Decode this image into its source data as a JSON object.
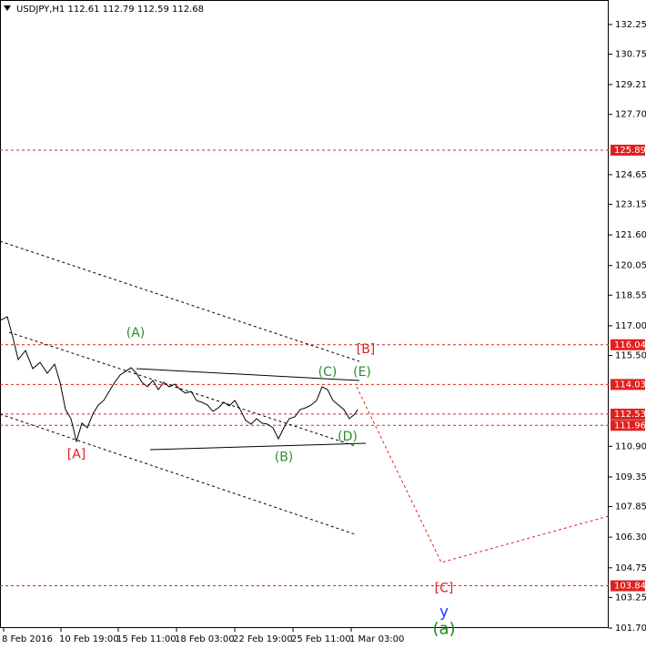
{
  "chart_data": {
    "type": "line",
    "title": "USDJPY,H1  112.61 112.79 112.59 112.68",
    "xlim": [
      0,
      669
    ],
    "ylim": [
      101.7,
      133.49
    ],
    "xticks": [
      {
        "value": 4,
        "label": "8 Feb 2016"
      },
      {
        "value": 67,
        "label": "10 Feb 19:00"
      },
      {
        "value": 130,
        "label": "15 Feb 11:00"
      },
      {
        "value": 194,
        "label": "18 Feb 03:00"
      },
      {
        "value": 258,
        "label": "22 Feb 19:00"
      },
      {
        "value": 322,
        "label": "25 Feb 11:00"
      },
      {
        "value": 386,
        "label": "1 Mar 03:00"
      }
    ],
    "yticks": [
      {
        "value": 132.25,
        "label": "132.25"
      },
      {
        "value": 130.75,
        "label": "130.75"
      },
      {
        "value": 129.21,
        "label": "129.21"
      },
      {
        "value": 127.7,
        "label": "127.70"
      },
      {
        "value": 124.65,
        "label": "124.65"
      },
      {
        "value": 123.15,
        "label": "123.15"
      },
      {
        "value": 121.6,
        "label": "121.60"
      },
      {
        "value": 120.05,
        "label": "120.05"
      },
      {
        "value": 118.55,
        "label": "118.55"
      },
      {
        "value": 117.0,
        "label": "117.00"
      },
      {
        "value": 115.5,
        "label": "115.50"
      },
      {
        "value": 110.9,
        "label": "110.90"
      },
      {
        "value": 109.35,
        "label": "109.35"
      },
      {
        "value": 107.85,
        "label": "107.85"
      },
      {
        "value": 106.3,
        "label": "106.30"
      },
      {
        "value": 104.75,
        "label": "104.75"
      },
      {
        "value": 103.25,
        "label": "103.25"
      },
      {
        "value": 101.7,
        "label": "101.70"
      }
    ],
    "series": [
      {
        "color": "#000000",
        "style": "solid",
        "x": [
          0,
          8,
          14,
          20,
          28,
          36,
          44,
          52,
          60,
          66,
          72,
          78,
          84,
          90,
          96,
          102,
          108,
          114,
          120,
          126,
          132,
          138,
          144,
          150,
          156,
          162,
          168,
          174,
          180,
          186,
          192,
          198,
          204,
          210,
          216,
          222,
          228,
          234,
          240,
          246,
          252,
          258,
          264,
          270,
          276,
          282,
          288,
          294,
          300,
          306,
          312,
          318,
          324,
          330,
          336,
          342,
          348,
          354,
          360,
          366,
          372,
          378,
          384,
          390,
          393
        ],
        "values": [
          117.27,
          117.46,
          116.44,
          115.29,
          115.75,
          114.83,
          115.15,
          114.6,
          115.06,
          114.14,
          112.76,
          112.3,
          111.15,
          112.07,
          111.84,
          112.53,
          112.99,
          113.22,
          113.68,
          114.14,
          114.51,
          114.69,
          114.88,
          114.6,
          114.14,
          113.91,
          114.23,
          113.77,
          114.14,
          113.91,
          114.05,
          113.77,
          113.59,
          113.68,
          113.22,
          113.13,
          112.99,
          112.67,
          112.85,
          113.13,
          112.94,
          113.22,
          112.76,
          112.21,
          112.02,
          112.3,
          112.07,
          112.02,
          111.84,
          111.28,
          111.84,
          112.3,
          112.39,
          112.76,
          112.85,
          112.99,
          113.22,
          113.91,
          113.77,
          113.22,
          112.99,
          112.76,
          112.3,
          112.53,
          112.76
        ]
      },
      {
        "color": "#e02020",
        "style": "dashed",
        "x": [
          392,
          485,
          669
        ],
        "values": [
          113.91,
          105.02,
          107.37
        ]
      }
    ],
    "lines": [
      {
        "color": "#000000",
        "style": "dashed",
        "x": [
          0,
          395
        ],
        "values": [
          121.28,
          115.2
        ]
      },
      {
        "color": "#000000",
        "style": "dashed",
        "x": [
          0,
          390
        ],
        "values": [
          112.53,
          106.45
        ]
      },
      {
        "color": "#000000",
        "style": "dashed",
        "x": [
          10,
          390
        ],
        "values": [
          116.67,
          110.92
        ]
      },
      {
        "color": "#000000",
        "style": "solid",
        "x": [
          150,
          395
        ],
        "values": [
          114.83,
          114.23
        ]
      },
      {
        "color": "#000000",
        "style": "solid",
        "x": [
          165,
          402
        ],
        "values": [
          110.73,
          111.05
        ]
      }
    ],
    "levels": [
      {
        "value": 125.89,
        "color": "#e02020"
      },
      {
        "value": 116.04,
        "color": "#e02020"
      },
      {
        "value": 114.03,
        "color": "#e02020"
      },
      {
        "value": 112.53,
        "color": "#e02020"
      },
      {
        "value": 111.96,
        "color": "#e02020"
      },
      {
        "value": 103.84,
        "color": "#e02020"
      }
    ],
    "annotations": [
      {
        "text": "[A]",
        "x": 84,
        "y": 110.47,
        "color": "#e02020",
        "size": 14
      },
      {
        "text": "(A)",
        "x": 149,
        "y": 116.63,
        "color": "#2e8b2e",
        "size": 14
      },
      {
        "text": "(B)",
        "x": 312,
        "y": 110.33,
        "color": "#2e8b2e",
        "size": 14
      },
      {
        "text": "(C)",
        "x": 360,
        "y": 114.65,
        "color": "#2e8b2e",
        "size": 14
      },
      {
        "text": "(D)",
        "x": 382,
        "y": 111.38,
        "color": "#2e8b2e",
        "size": 14
      },
      {
        "text": "(E)",
        "x": 398,
        "y": 114.65,
        "color": "#2e8b2e",
        "size": 14
      },
      {
        "text": "[B]",
        "x": 402,
        "y": 115.8,
        "color": "#e02020",
        "size": 14
      },
      {
        "text": "[C]",
        "x": 488,
        "y": 103.7,
        "color": "#e02020",
        "size": 14
      },
      {
        "text": "y",
        "x": 488,
        "y": 102.5,
        "color": "#1a3cff",
        "size": 17
      },
      {
        "text": "(a)",
        "x": 488,
        "y": 101.62,
        "color": "#1a8a1a",
        "size": 18
      }
    ]
  }
}
